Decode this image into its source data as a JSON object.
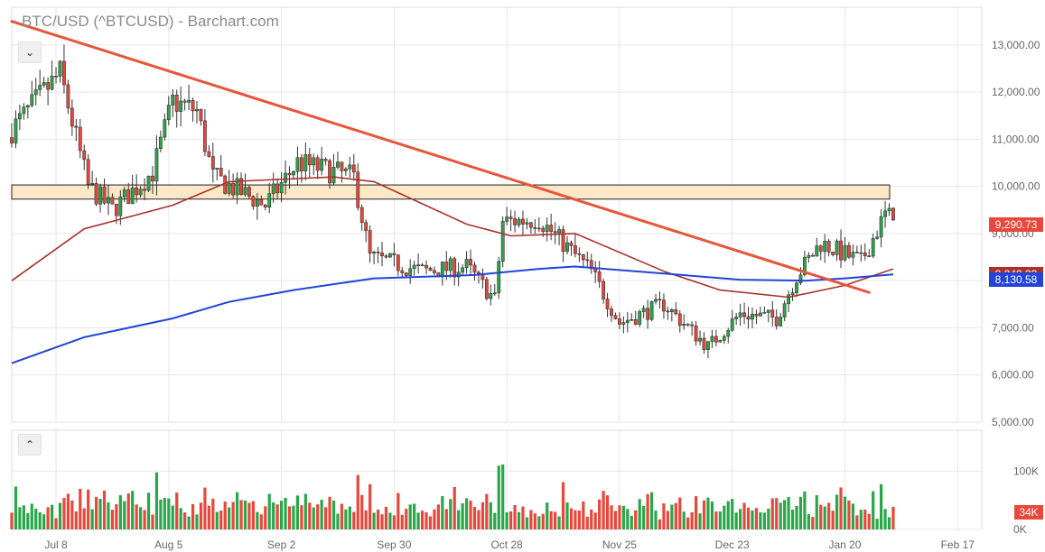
{
  "title": "BTC/USD (^BTCUSD) - Barchart.com",
  "ui": {
    "collapse_price_icon": "⌄",
    "collapse_volume_icon": "⌃"
  },
  "colors": {
    "up": "#2aa64a",
    "down": "#e8473b",
    "ma_fast": "#a8322c",
    "ma_slow": "#2244d8",
    "trendline": "#e8553a",
    "zone_fill": "#fce8c7",
    "grid": "#e6e6e6",
    "axis_text": "#666666"
  },
  "price_tags": {
    "last": "9,290.73",
    "ma_slow_value": "8,130.58",
    "ma_fast_value": "8,249.33"
  },
  "volume_tag": "34K",
  "chart_data": {
    "type": "candlestick",
    "price_axis": {
      "ylim": [
        5000,
        13800
      ],
      "ticks": [
        5000,
        6000,
        7000,
        8000,
        9000,
        10000,
        11000,
        12000,
        13000
      ],
      "tick_labels": [
        "5,000.00",
        "6,000.00",
        "7,000.00",
        "8,000.00",
        "9,000.00",
        "10,000.00",
        "11,000.00",
        "12,000.00",
        "13,000.00"
      ]
    },
    "volume_axis": {
      "ylim": [
        0,
        170000
      ],
      "ticks": [
        0,
        100000
      ],
      "tick_labels": [
        "0K",
        "100K"
      ]
    },
    "x_axis": {
      "start": "2019-06-27",
      "end": "2020-02-23",
      "labels": [
        {
          "date": "2019-07-08",
          "label": "Jul 8"
        },
        {
          "date": "2019-08-05",
          "label": "Aug 5"
        },
        {
          "date": "2019-09-02",
          "label": "Sep 2"
        },
        {
          "date": "2019-09-30",
          "label": "Sep 30"
        },
        {
          "date": "2019-10-28",
          "label": "Oct 28"
        },
        {
          "date": "2019-11-25",
          "label": "Nov 25"
        },
        {
          "date": "2019-12-23",
          "label": "Dec 23"
        },
        {
          "date": "2020-01-20",
          "label": "Jan 20"
        },
        {
          "date": "2020-02-17",
          "label": "Feb 17"
        }
      ]
    },
    "resistance_zone": [
      9730,
      10030
    ],
    "trendline": [
      {
        "date": "2019-06-27",
        "value": 13500
      },
      {
        "date": "2020-01-26",
        "value": 7750
      }
    ],
    "series": [
      {
        "name": "BTC/USD",
        "style": "candles",
        "key_points": [
          {
            "date": "2019-06-27",
            "close": 11200
          },
          {
            "date": "2019-07-03",
            "close": 11800
          },
          {
            "date": "2019-07-09",
            "close": 12400
          },
          {
            "date": "2019-07-16",
            "close": 10000
          },
          {
            "date": "2019-07-22",
            "close": 9500
          },
          {
            "date": "2019-08-01",
            "close": 10300
          },
          {
            "date": "2019-08-06",
            "close": 11800
          },
          {
            "date": "2019-08-12",
            "close": 11600
          },
          {
            "date": "2019-08-16",
            "close": 10200
          },
          {
            "date": "2019-08-29",
            "close": 9600
          },
          {
            "date": "2019-09-06",
            "close": 10500
          },
          {
            "date": "2019-09-20",
            "close": 10200
          },
          {
            "date": "2019-09-24",
            "close": 8500
          },
          {
            "date": "2019-10-07",
            "close": 8200
          },
          {
            "date": "2019-10-18",
            "close": 8300
          },
          {
            "date": "2019-10-25",
            "close": 7600
          },
          {
            "date": "2019-10-27",
            "close": 9250
          },
          {
            "date": "2019-11-05",
            "close": 9300
          },
          {
            "date": "2019-11-18",
            "close": 8200
          },
          {
            "date": "2019-11-25",
            "close": 7100
          },
          {
            "date": "2019-12-06",
            "close": 7500
          },
          {
            "date": "2019-12-17",
            "close": 6600
          },
          {
            "date": "2019-12-25",
            "close": 7300
          },
          {
            "date": "2020-01-03",
            "close": 7200
          },
          {
            "date": "2020-01-08",
            "close": 8100
          },
          {
            "date": "2020-01-14",
            "close": 8800
          },
          {
            "date": "2020-01-24",
            "close": 8400
          },
          {
            "date": "2020-01-30",
            "close": 9400
          },
          {
            "date": "2020-02-01",
            "close": 9291
          }
        ]
      },
      {
        "name": "ma_fast",
        "style": "line",
        "points": [
          {
            "date": "2019-06-27",
            "value": 8000
          },
          {
            "date": "2019-07-15",
            "value": 9100
          },
          {
            "date": "2019-08-06",
            "value": 9600
          },
          {
            "date": "2019-08-20",
            "value": 10100
          },
          {
            "date": "2019-09-15",
            "value": 10200
          },
          {
            "date": "2019-09-25",
            "value": 10100
          },
          {
            "date": "2019-10-18",
            "value": 9200
          },
          {
            "date": "2019-10-29",
            "value": 8950
          },
          {
            "date": "2019-11-14",
            "value": 9000
          },
          {
            "date": "2019-12-06",
            "value": 8200
          },
          {
            "date": "2019-12-20",
            "value": 7800
          },
          {
            "date": "2020-01-06",
            "value": 7650
          },
          {
            "date": "2020-01-20",
            "value": 7900
          },
          {
            "date": "2020-02-01",
            "value": 8250
          }
        ]
      },
      {
        "name": "ma_slow",
        "style": "line",
        "points": [
          {
            "date": "2019-06-27",
            "value": 6250
          },
          {
            "date": "2019-07-15",
            "value": 6800
          },
          {
            "date": "2019-08-06",
            "value": 7200
          },
          {
            "date": "2019-08-20",
            "value": 7550
          },
          {
            "date": "2019-09-05",
            "value": 7800
          },
          {
            "date": "2019-09-25",
            "value": 8050
          },
          {
            "date": "2019-10-20",
            "value": 8120
          },
          {
            "date": "2019-11-05",
            "value": 8250
          },
          {
            "date": "2019-11-14",
            "value": 8300
          },
          {
            "date": "2019-12-06",
            "value": 8150
          },
          {
            "date": "2019-12-25",
            "value": 8020
          },
          {
            "date": "2020-01-10",
            "value": 8000
          },
          {
            "date": "2020-01-20",
            "value": 8050
          },
          {
            "date": "2020-02-01",
            "value": 8131
          }
        ]
      }
    ]
  }
}
